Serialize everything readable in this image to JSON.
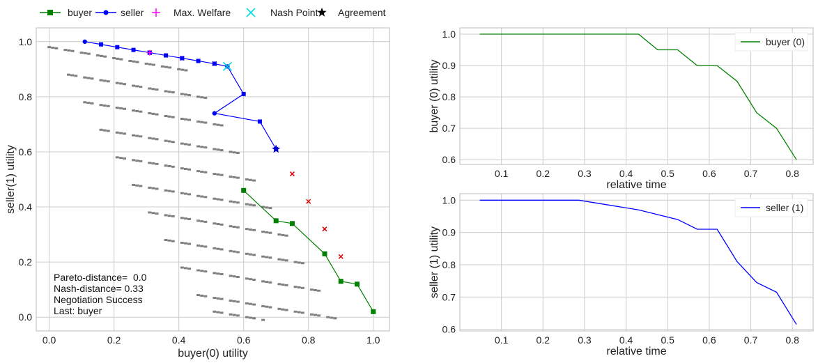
{
  "colors": {
    "buyer": "#008000",
    "seller": "#0000ff",
    "max_welfare": "#ff00ff",
    "nash": "#00e0e0",
    "agreement": "#000000",
    "outcomes": "#808080",
    "pareto_cross": "#dd0000",
    "grid": "#cccccc",
    "frame": "#bbbbbb"
  },
  "legend": [
    {
      "label": "buyer",
      "icon": "green-square-line-marker"
    },
    {
      "label": "seller",
      "icon": "blue-circle-line-marker"
    },
    {
      "label": "Max. Welfare",
      "icon": "magenta-plus-marker"
    },
    {
      "label": "Nash Point",
      "icon": "cyan-x-marker"
    },
    {
      "label": "Agreement",
      "icon": "black-star-marker"
    }
  ],
  "annotation": {
    "line1": "Pareto-distance=  0.0",
    "line2": "Nash-distance= 0.33",
    "line3": "Negotiation Success",
    "line4": "Last: buyer"
  },
  "chart_data": [
    {
      "type": "scatter",
      "xlabel": "buyer(0) utility",
      "ylabel": "seller(1) utility",
      "xlim": [
        -0.04,
        1.05
      ],
      "ylim": [
        -0.05,
        1.05
      ],
      "xticks": [
        "0.0",
        "0.2",
        "0.4",
        "0.6",
        "0.8",
        "1.0"
      ],
      "yticks": [
        "0.0",
        "0.2",
        "0.4",
        "0.6",
        "0.8",
        "1.0"
      ],
      "grid": true,
      "legend_position": "top-left-outside",
      "series": [
        {
          "name": "buyer",
          "x": [
            0.6,
            0.7,
            0.75,
            0.85,
            0.9,
            0.95,
            1.0
          ],
          "y": [
            0.46,
            0.35,
            0.34,
            0.23,
            0.13,
            0.12,
            0.02
          ]
        },
        {
          "name": "seller",
          "x": [
            0.11,
            0.16,
            0.21,
            0.26,
            0.31,
            0.36,
            0.41,
            0.46,
            0.51,
            0.55,
            0.6,
            0.51,
            0.65,
            0.7
          ],
          "y": [
            1.0,
            0.99,
            0.98,
            0.97,
            0.96,
            0.95,
            0.94,
            0.93,
            0.92,
            0.91,
            0.81,
            0.74,
            0.71,
            0.61
          ]
        },
        {
          "name": "Max. Welfare",
          "x": [
            0.31
          ],
          "y": [
            0.96
          ]
        },
        {
          "name": "Nash Point",
          "x": [
            0.55
          ],
          "y": [
            0.91
          ]
        },
        {
          "name": "Agreement",
          "x": [
            0.7
          ],
          "y": [
            0.61
          ]
        }
      ],
      "pareto_crosses": {
        "x": [
          0.31,
          0.41,
          0.51,
          0.75,
          0.8,
          0.85,
          0.9
        ],
        "y": [
          0.96,
          0.94,
          0.92,
          0.52,
          0.42,
          0.32,
          0.22
        ]
      },
      "outcome_grid": {
        "rows_count": 13,
        "row_start_x": [
          0.0,
          0.06,
          0.11,
          0.16,
          0.21,
          0.26,
          0.31,
          0.36,
          0.41,
          0.46,
          0.51,
          0.56,
          0.61
        ],
        "row_start_y": [
          0.98,
          0.88,
          0.78,
          0.68,
          0.58,
          0.48,
          0.38,
          0.28,
          0.18,
          0.08,
          0.02,
          -0.02,
          -0.04
        ]
      }
    },
    {
      "type": "line",
      "xlabel": "relative time",
      "ylabel": "buyer (0) utility",
      "xlim": [
        0.0,
        0.85
      ],
      "ylim": [
        0.585,
        1.02
      ],
      "xticks": [
        "0.1",
        "0.2",
        "0.3",
        "0.4",
        "0.5",
        "0.6",
        "0.7",
        "0.8"
      ],
      "yticks": [
        "0.6",
        "0.7",
        "0.8",
        "0.9",
        "1.0"
      ],
      "grid": true,
      "legend_position": "top-right",
      "series": [
        {
          "name": "buyer (0)",
          "x": [
            0.048,
            0.43,
            0.476,
            0.524,
            0.571,
            0.619,
            0.667,
            0.714,
            0.762,
            0.81
          ],
          "y": [
            1.0,
            1.0,
            0.95,
            0.95,
            0.9,
            0.9,
            0.85,
            0.75,
            0.7,
            0.6
          ]
        }
      ]
    },
    {
      "type": "line",
      "xlabel": "relative time",
      "ylabel": "seller (1) utility",
      "xlim": [
        0.0,
        0.85
      ],
      "ylim": [
        0.595,
        1.02
      ],
      "xticks": [
        "0.1",
        "0.2",
        "0.3",
        "0.4",
        "0.5",
        "0.6",
        "0.7",
        "0.8"
      ],
      "yticks": [
        "0.6",
        "0.7",
        "0.8",
        "0.9",
        "1.0"
      ],
      "grid": true,
      "legend_position": "top-right",
      "series": [
        {
          "name": "seller (1)",
          "x": [
            0.048,
            0.286,
            0.43,
            0.524,
            0.571,
            0.619,
            0.667,
            0.714,
            0.762,
            0.81
          ],
          "y": [
            1.0,
            1.0,
            0.97,
            0.94,
            0.91,
            0.91,
            0.81,
            0.745,
            0.715,
            0.615
          ]
        }
      ]
    }
  ]
}
